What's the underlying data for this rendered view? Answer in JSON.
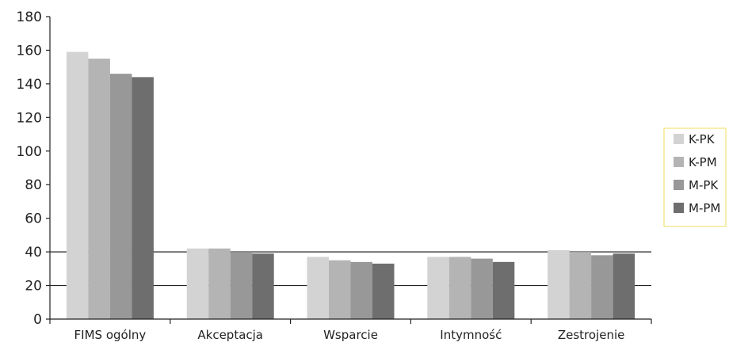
{
  "chart_data": {
    "type": "bar",
    "categories": [
      "FIMS ogólny",
      "Akceptacja",
      "Wsparcie",
      "Intymność",
      "Zestrojenie"
    ],
    "series": [
      {
        "name": "K-PK",
        "values": [
          159,
          42,
          37,
          37,
          41
        ],
        "color": "#d3d3d3"
      },
      {
        "name": "K-PM",
        "values": [
          155,
          42,
          35,
          37,
          40
        ],
        "color": "#b4b4b4"
      },
      {
        "name": "M-PK",
        "values": [
          146,
          40,
          34,
          36,
          38
        ],
        "color": "#989898"
      },
      {
        "name": "M-PM",
        "values": [
          144,
          39,
          33,
          34,
          39
        ],
        "color": "#6e6e6e"
      }
    ],
    "ylim": [
      0,
      180
    ],
    "yticks": [
      "0",
      "20",
      "40",
      "60",
      "80",
      "100",
      "120",
      "140",
      "160",
      "180"
    ],
    "gridlines_at": [
      20,
      40
    ],
    "legend_position": "right",
    "legend_border_color": "#f2e27a"
  }
}
